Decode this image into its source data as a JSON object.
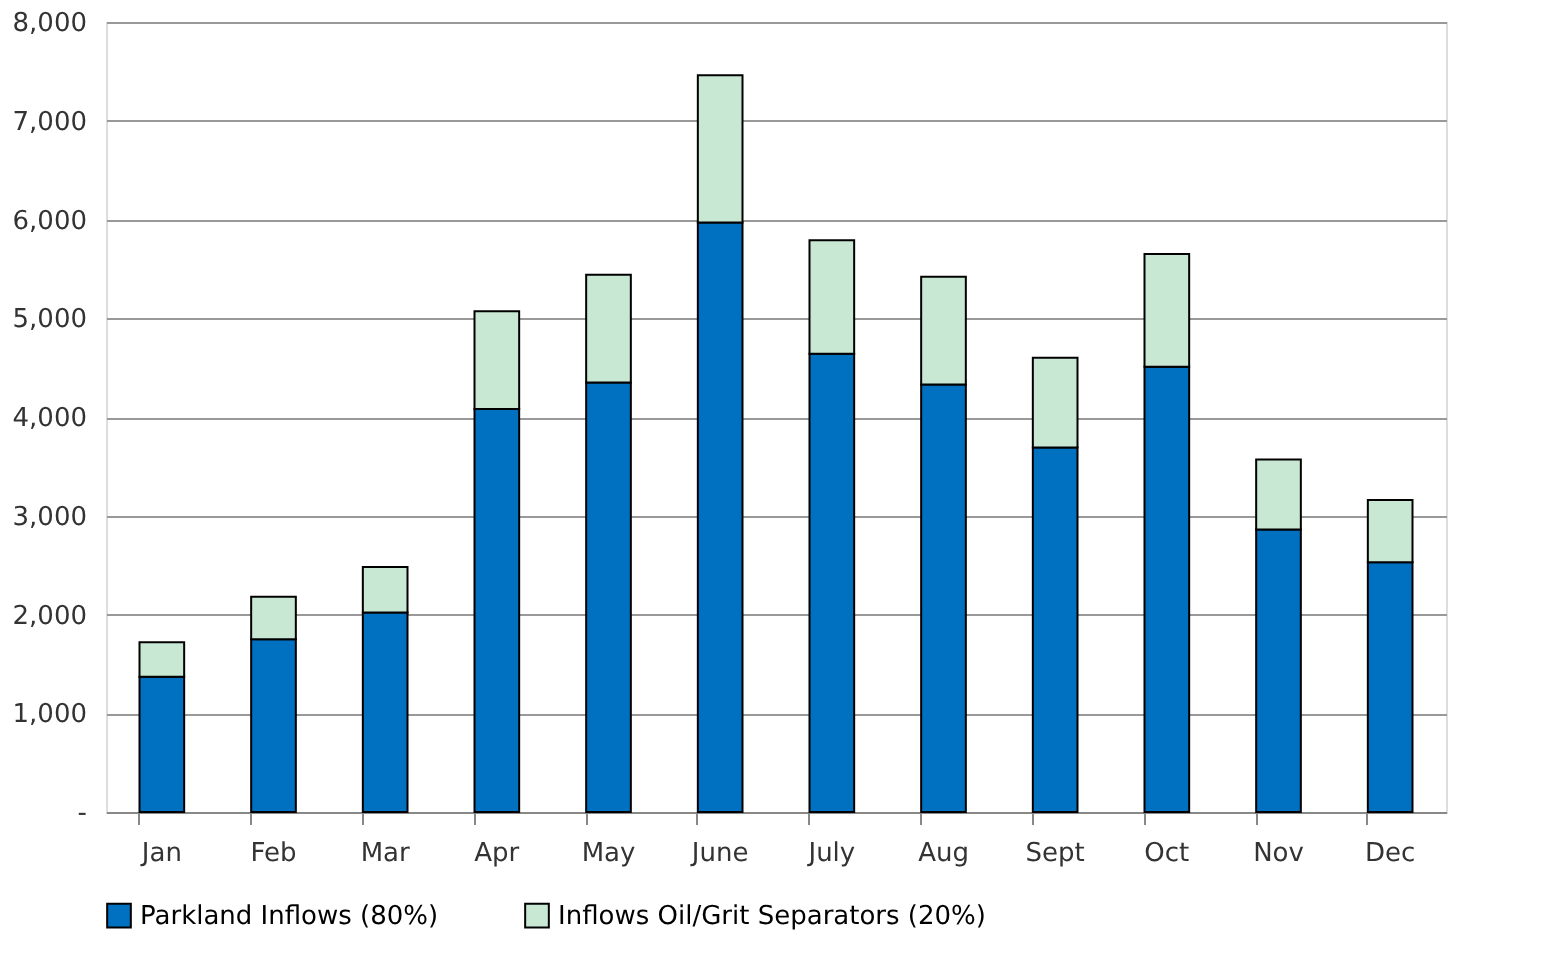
{
  "chart_data": {
    "type": "bar",
    "stacked": true,
    "categories": [
      "Jan",
      "Feb",
      "Mar",
      "Apr",
      "May",
      "June",
      "July",
      "Aug",
      "Sept",
      "Oct",
      "Nov",
      "Dec"
    ],
    "series": [
      {
        "name": "Parkland Inflows (80%)",
        "color": "#0070c0",
        "values": [
          1370,
          1750,
          2020,
          4080,
          4350,
          5970,
          4640,
          4330,
          3690,
          4510,
          2860,
          2530
        ]
      },
      {
        "name": "Inflows Oil/Grit Separators (20%)",
        "color": "#c9e8d4",
        "values": [
          350,
          430,
          460,
          990,
          1090,
          1490,
          1150,
          1090,
          910,
          1140,
          710,
          630
        ]
      }
    ],
    "ylim": [
      0,
      8000
    ],
    "yticks": [
      {
        "value": 0,
        "label": "-"
      },
      {
        "value": 1000,
        "label": "1,000"
      },
      {
        "value": 2000,
        "label": "2,000"
      },
      {
        "value": 3000,
        "label": "3,000"
      },
      {
        "value": 4000,
        "label": "4,000"
      },
      {
        "value": 5000,
        "label": "5,000"
      },
      {
        "value": 6000,
        "label": "6,000"
      },
      {
        "value": 7000,
        "label": "7,000"
      },
      {
        "value": 8000,
        "label": "8,000"
      }
    ],
    "grid": "y",
    "legend": "bottom"
  }
}
